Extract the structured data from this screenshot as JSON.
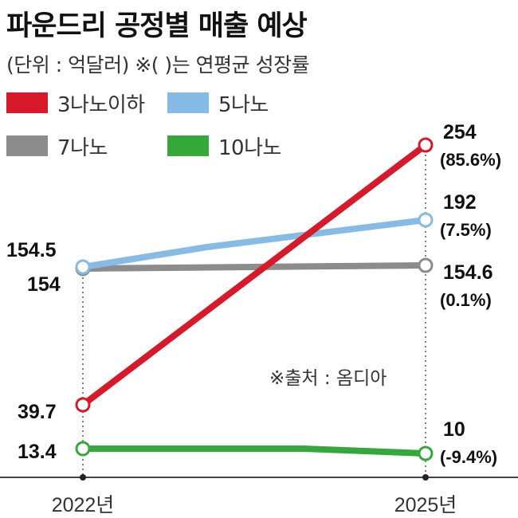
{
  "title": "파운드리 공정별 매출 예상",
  "subtitle": "(단위 : 억달러)  ※(  )는 연평균 성장률",
  "source": "※출처 : 옴디아",
  "colors": {
    "red": "#d7192a",
    "blue": "#86bbe6",
    "gray": "#8c8c8c",
    "green": "#34a83b"
  },
  "legend": [
    {
      "label": "3나노이하",
      "color": "#d7192a"
    },
    {
      "label": "5나노",
      "color": "#86bbe6"
    },
    {
      "label": "7나노",
      "color": "#8c8c8c"
    },
    {
      "label": "10나노",
      "color": "#34a83b"
    }
  ],
  "chart_data": {
    "type": "line",
    "title": "파운드리 공정별 매출 예상",
    "subtitle": "(단위 : 억달러)  ※(  )는 연평균 성장률",
    "x": [
      "2022년",
      "2025년"
    ],
    "ylabel": "",
    "xlabel": "",
    "grid": false,
    "legend_position": "top-left",
    "series": [
      {
        "name": "3나노이하",
        "values": [
          39.7,
          254
        ],
        "labels": [
          "39.7",
          "254"
        ],
        "growth": "(85.6%)",
        "color": "#d7192a"
      },
      {
        "name": "5나노",
        "values": [
          154.5,
          192
        ],
        "labels": [
          "154.5",
          "192"
        ],
        "growth": "(7.5%)",
        "color": "#86bbe6"
      },
      {
        "name": "7나노",
        "values": [
          154,
          154.6
        ],
        "labels": [
          "154",
          "154.6"
        ],
        "growth": "(0.1%)",
        "color": "#8c8c8c"
      },
      {
        "name": "10나노",
        "values": [
          13.4,
          10
        ],
        "labels": [
          "13.4",
          "10"
        ],
        "growth": "(-9.4%)",
        "color": "#34a83b"
      }
    ]
  }
}
